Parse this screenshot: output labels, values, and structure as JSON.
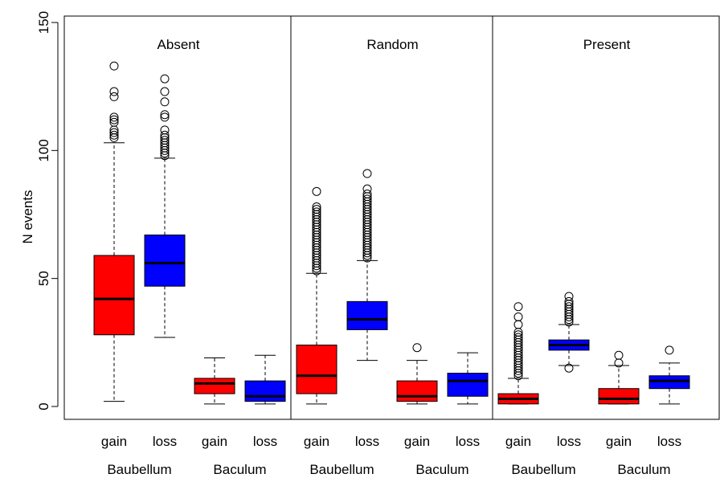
{
  "chart_data": {
    "type": "boxplot",
    "ylabel": "N events",
    "ylim": [
      0,
      150
    ],
    "yticks": [
      0,
      50,
      100,
      150
    ],
    "colors": {
      "gain": "#ff0000",
      "loss": "#0000ff"
    },
    "panels": [
      {
        "name": "Absent",
        "boxes": [
          {
            "structure": "Baubellum",
            "type": "gain",
            "whisker_low": 2,
            "q1": 28,
            "median": 42,
            "q3": 59,
            "whisker_high": 103,
            "outliers": [
              105,
              106,
              107,
              108,
              111,
              112,
              113,
              121,
              123,
              133
            ]
          },
          {
            "structure": "Baubellum",
            "type": "loss",
            "whisker_low": 27,
            "q1": 47,
            "median": 56,
            "q3": 67,
            "whisker_high": 97,
            "outliers": [
              98,
              99,
              100,
              101,
              102,
              103,
              104,
              105,
              106,
              108,
              113,
              114,
              119,
              123,
              128
            ]
          },
          {
            "structure": "Baculum",
            "type": "gain",
            "whisker_low": 1,
            "q1": 5,
            "median": 9,
            "q3": 11,
            "whisker_high": 19,
            "outliers": []
          },
          {
            "structure": "Baculum",
            "type": "loss",
            "whisker_low": 1,
            "q1": 2,
            "median": 4,
            "q3": 10,
            "whisker_high": 20,
            "outliers": []
          }
        ]
      },
      {
        "name": "Random",
        "boxes": [
          {
            "structure": "Baubellum",
            "type": "gain",
            "whisker_low": 1,
            "q1": 5,
            "median": 12,
            "q3": 24,
            "whisker_high": 52,
            "outliers": [
              53,
              54,
              55,
              56,
              57,
              58,
              59,
              60,
              61,
              62,
              63,
              64,
              65,
              66,
              67,
              68,
              69,
              70,
              71,
              72,
              73,
              74,
              75,
              76,
              77,
              78,
              84
            ]
          },
          {
            "structure": "Baubellum",
            "type": "loss",
            "whisker_low": 18,
            "q1": 30,
            "median": 34,
            "q3": 41,
            "whisker_high": 57,
            "outliers": [
              58,
              59,
              60,
              61,
              62,
              63,
              64,
              65,
              66,
              67,
              68,
              69,
              70,
              71,
              72,
              73,
              74,
              75,
              76,
              77,
              78,
              79,
              80,
              81,
              82,
              83,
              85,
              91
            ]
          },
          {
            "structure": "Baculum",
            "type": "gain",
            "whisker_low": 1,
            "q1": 2,
            "median": 4,
            "q3": 10,
            "whisker_high": 18,
            "outliers": [
              23
            ]
          },
          {
            "structure": "Baculum",
            "type": "loss",
            "whisker_low": 1,
            "q1": 4,
            "median": 10,
            "q3": 13,
            "whisker_high": 21,
            "outliers": []
          }
        ]
      },
      {
        "name": "Present",
        "boxes": [
          {
            "structure": "Baubellum",
            "type": "gain",
            "whisker_low": 1,
            "q1": 1,
            "median": 3,
            "q3": 5,
            "whisker_high": 11,
            "outliers": [
              12,
              13,
              14,
              15,
              16,
              17,
              18,
              19,
              20,
              21,
              22,
              23,
              24,
              25,
              26,
              27,
              28,
              29,
              32,
              35,
              39
            ]
          },
          {
            "structure": "Baubellum",
            "type": "loss",
            "whisker_low": 16,
            "q1": 22,
            "median": 24,
            "q3": 26,
            "whisker_high": 32,
            "outliers": [
              15,
              33,
              34,
              35,
              36,
              37,
              38,
              39,
              40,
              41,
              43
            ]
          },
          {
            "structure": "Baculum",
            "type": "gain",
            "whisker_low": 1,
            "q1": 1,
            "median": 3,
            "q3": 7,
            "whisker_high": 16,
            "outliers": [
              17,
              20
            ]
          },
          {
            "structure": "Baculum",
            "type": "loss",
            "whisker_low": 1,
            "q1": 7,
            "median": 10,
            "q3": 12,
            "whisker_high": 17,
            "outliers": [
              22
            ]
          }
        ]
      }
    ]
  }
}
